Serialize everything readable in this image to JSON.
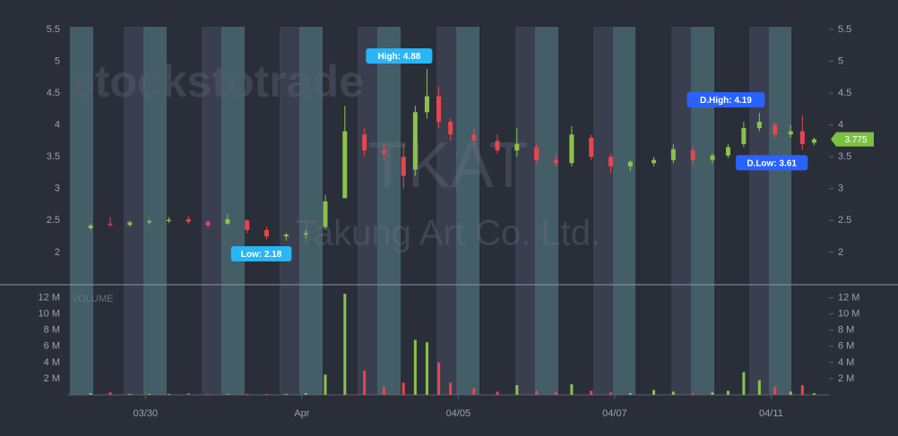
{
  "chart_data": {
    "type": "candlestick",
    "watermark": {
      "brand": "stockstotrade",
      "ticker": "TKAT",
      "company": "Takung Art Co. Ltd."
    },
    "volume_label": "VOLUME",
    "up_color": "#8bc34a",
    "down_color": "#e5464f",
    "x": [
      0.3,
      0.55,
      0.8,
      1.05,
      1.3,
      1.55,
      1.8,
      2.05,
      2.3,
      2.55,
      2.8,
      3.05,
      3.3,
      3.55,
      3.8,
      4.05,
      4.3,
      4.45,
      4.6,
      4.75,
      4.9,
      5.2,
      5.5,
      5.75,
      6.0,
      6.25,
      6.45,
      6.7,
      6.95,
      7.2,
      7.5,
      7.75,
      8.0,
      8.25,
      8.45,
      8.65,
      8.85,
      9.05,
      9.25,
      9.4,
      9.55
    ],
    "open": [
      2.38,
      2.45,
      2.43,
      2.47,
      2.49,
      2.52,
      2.48,
      2.45,
      2.5,
      2.35,
      2.25,
      2.28,
      2.4,
      2.85,
      3.85,
      3.6,
      3.5,
      3.3,
      4.2,
      4.45,
      4.05,
      3.85,
      3.75,
      3.6,
      3.65,
      3.45,
      3.4,
      3.8,
      3.5,
      3.35,
      3.4,
      3.45,
      3.6,
      3.45,
      3.52,
      3.7,
      3.95,
      4.0,
      3.85,
      3.9,
      3.72
    ],
    "high": [
      2.45,
      2.55,
      2.5,
      2.52,
      2.55,
      2.57,
      2.5,
      2.6,
      2.52,
      2.4,
      2.3,
      2.35,
      2.9,
      4.3,
      3.95,
      3.7,
      3.7,
      4.3,
      4.88,
      4.6,
      4.1,
      3.95,
      3.85,
      3.95,
      3.7,
      3.55,
      3.98,
      3.85,
      3.55,
      3.45,
      3.5,
      3.7,
      3.65,
      3.55,
      3.7,
      4.05,
      4.19,
      4.05,
      4.0,
      4.15,
      3.8
    ],
    "low": [
      2.35,
      2.4,
      2.4,
      2.44,
      2.46,
      2.45,
      2.38,
      2.43,
      2.3,
      2.2,
      2.18,
      2.22,
      2.35,
      2.85,
      3.5,
      3.45,
      3.0,
      3.2,
      4.1,
      3.95,
      3.75,
      3.65,
      3.55,
      3.5,
      3.4,
      3.35,
      3.35,
      3.45,
      3.25,
      3.28,
      3.35,
      3.4,
      3.38,
      3.4,
      3.48,
      3.65,
      3.9,
      3.8,
      3.8,
      3.61,
      3.68
    ],
    "close": [
      2.42,
      2.43,
      2.47,
      2.49,
      2.51,
      2.48,
      2.42,
      2.52,
      2.35,
      2.25,
      2.28,
      2.3,
      2.8,
      3.9,
      3.6,
      3.55,
      3.2,
      4.2,
      4.45,
      4.05,
      3.85,
      3.75,
      3.6,
      3.7,
      3.45,
      3.4,
      3.85,
      3.5,
      3.35,
      3.42,
      3.45,
      3.62,
      3.45,
      3.52,
      3.65,
      3.95,
      4.05,
      3.85,
      3.9,
      3.7,
      3.775
    ],
    "volume": [
      200000,
      300000,
      100000,
      100000,
      100000,
      200000,
      100000,
      100000,
      100000,
      100000,
      100000,
      200000,
      2500000,
      12500000,
      3000000,
      1000000,
      1500000,
      6800000,
      6500000,
      4000000,
      1500000,
      800000,
      400000,
      1200000,
      500000,
      300000,
      1300000,
      500000,
      300000,
      200000,
      600000,
      400000,
      200000,
      300000,
      500000,
      2800000,
      1800000,
      1000000,
      400000,
      1200000,
      200000
    ],
    "xlim": [
      0,
      9.74
    ],
    "xticks": [
      {
        "value": 1,
        "label": "03/30"
      },
      {
        "value": 3,
        "label": "Apr"
      },
      {
        "value": 5,
        "label": "04/05"
      },
      {
        "value": 7,
        "label": "04/07"
      },
      {
        "value": 9,
        "label": "04/11"
      }
    ],
    "ylim": [
      1.52,
      5.54
    ],
    "yticks": [
      2,
      2.5,
      3,
      3.5,
      4,
      4.5,
      5,
      5.5
    ],
    "volume_ylim": [
      0,
      13400000
    ],
    "volume_ticks": [
      {
        "value": 2000000,
        "label": "2 M"
      },
      {
        "value": 4000000,
        "label": "4 M"
      },
      {
        "value": 6000000,
        "label": "6 M"
      },
      {
        "value": 8000000,
        "label": "8 M"
      },
      {
        "value": 10000000,
        "label": "10 M"
      },
      {
        "value": 12000000,
        "label": "12 M"
      }
    ],
    "annotations": [
      {
        "label": "High: 4.88",
        "x": 4.6,
        "value": 4.88,
        "side": "above",
        "color": "#29b6f6"
      },
      {
        "label": "Low: 2.18",
        "x": 2.8,
        "value": 2.18,
        "side": "below",
        "color": "#29b6f6"
      },
      {
        "label": "D.High: 4.19",
        "x": 8.85,
        "value": 4.19,
        "side": "above",
        "color": "#2962ff"
      },
      {
        "label": "D.Low: 3.61",
        "x": 9.4,
        "value": 3.61,
        "side": "below",
        "color": "#2962ff"
      }
    ],
    "last_price": 3.775,
    "last_price_color": "#7cc242"
  }
}
